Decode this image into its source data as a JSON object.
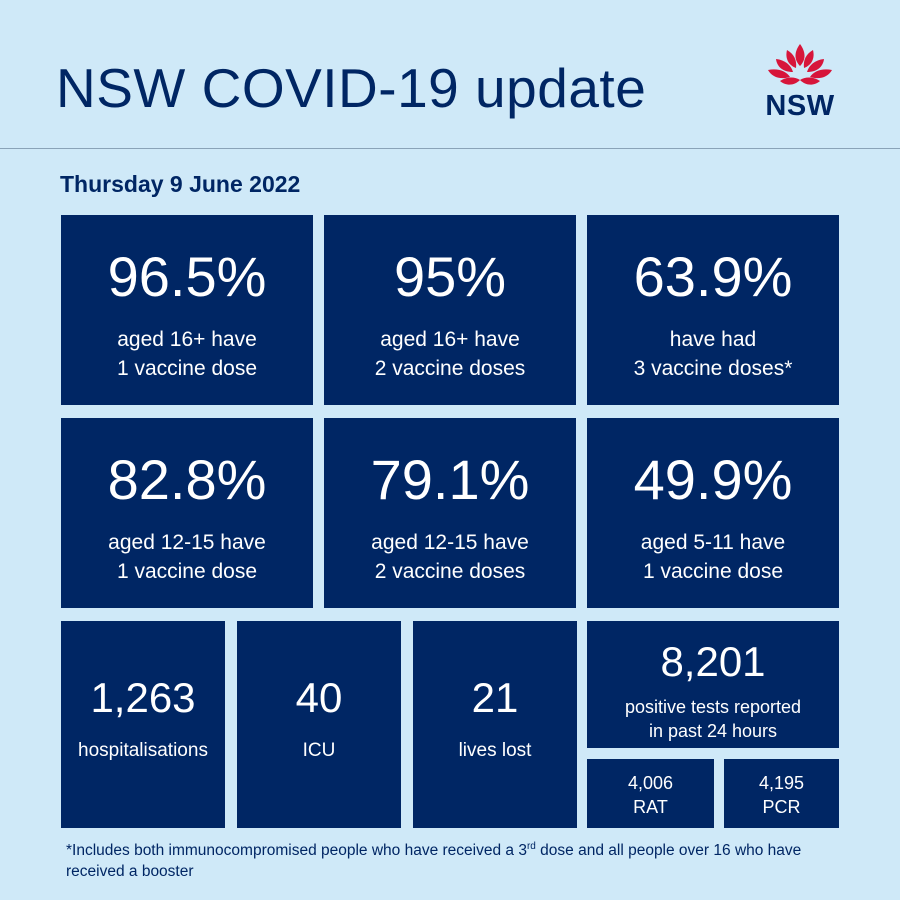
{
  "header": {
    "title": "NSW COVID-19 update",
    "logo_text": "NSW"
  },
  "date": "Thursday 9 June 2022",
  "tiles": [
    {
      "value": "96.5%",
      "line1": "aged 16+ have",
      "line2": "1 vaccine dose"
    },
    {
      "value": "95%",
      "line1": "aged 16+ have",
      "line2": "2 vaccine doses"
    },
    {
      "value": "63.9%",
      "line1": "have had",
      "line2": "3 vaccine doses*"
    },
    {
      "value": "82.8%",
      "line1": "aged 12-15 have",
      "line2": "1 vaccine dose"
    },
    {
      "value": "79.1%",
      "line1": "aged 12-15 have",
      "line2": "2 vaccine doses"
    },
    {
      "value": "49.9%",
      "line1": "aged 5-11 have",
      "line2": "1 vaccine dose"
    }
  ],
  "stats": {
    "hospital": {
      "value": "1,263",
      "label": "hospitalisations"
    },
    "icu": {
      "value": "40",
      "label": "ICU"
    },
    "deaths": {
      "value": "21",
      "label": "lives lost"
    },
    "tests": {
      "value": "8,201",
      "line1": "positive tests reported",
      "line2": "in past 24 hours"
    },
    "rat": {
      "value": "4,006",
      "label": "RAT"
    },
    "pcr": {
      "value": "4,195",
      "label": "PCR"
    }
  },
  "footnote": {
    "part1": "*Includes both immunocompromised people who have received a 3",
    "sup": "rd",
    "part2": " dose and all people over 16 who have received a booster"
  },
  "colors": {
    "background": "#cfe9f8",
    "tile": "#002664",
    "accent": "#d7153a"
  }
}
